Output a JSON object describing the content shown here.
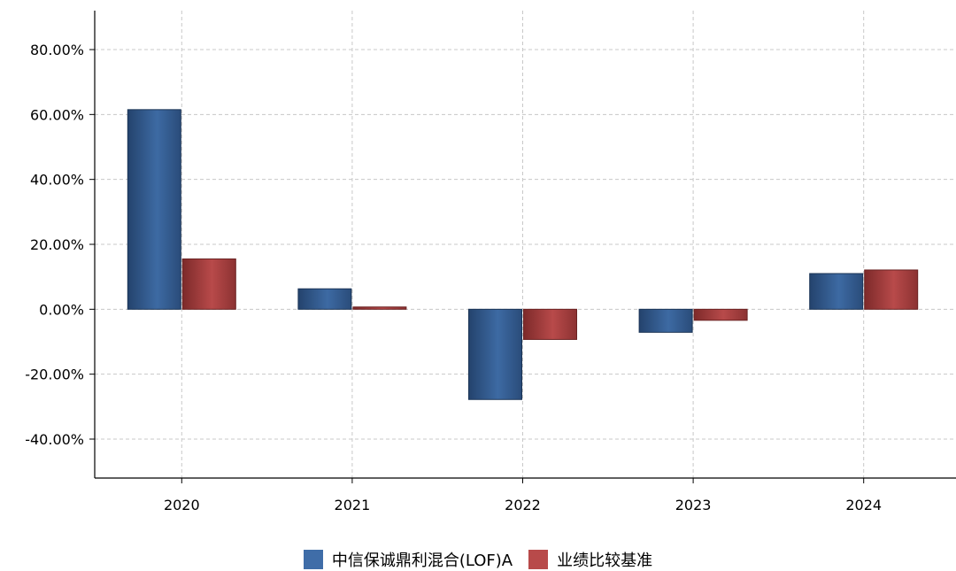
{
  "chart_data": {
    "type": "bar",
    "categories": [
      "2020",
      "2021",
      "2022",
      "2023",
      "2024"
    ],
    "series": [
      {
        "name": "中信保诚鼎利混合(LOF)A",
        "color": "#3f6da8",
        "values": [
          61.5,
          6.3,
          -27.8,
          -7.1,
          11.0
        ]
      },
      {
        "name": "业绩比较基准",
        "color": "#b84a4a",
        "values": [
          15.5,
          0.7,
          -9.3,
          -3.4,
          12.1
        ]
      }
    ],
    "y_ticks": [
      {
        "value": 80,
        "label": "80.00%"
      },
      {
        "value": 60,
        "label": "60.00%"
      },
      {
        "value": 40,
        "label": "40.00%"
      },
      {
        "value": 20,
        "label": "20.00%"
      },
      {
        "value": 0,
        "label": "0.00%"
      },
      {
        "value": -20,
        "label": "-20.00%"
      },
      {
        "value": -40,
        "label": "-40.00%"
      }
    ],
    "ylim": [
      -52,
      92
    ],
    "grid": true,
    "legend_position": "bottom"
  }
}
